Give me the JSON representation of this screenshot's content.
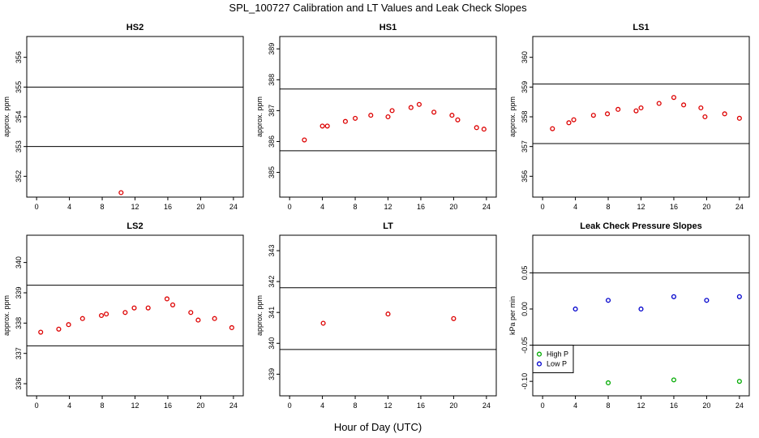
{
  "figure": {
    "title": "SPL_100727  Calibration and LT Values and Leak Check Slopes",
    "xlabel": "Hour of Day (UTC)"
  },
  "colors": {
    "calibration_points": "#dd0000",
    "high_p": "#00aa00",
    "low_p": "#0000cc",
    "axes": "#000000"
  },
  "chart_data": [
    {
      "type": "scatter",
      "title": "HS2",
      "ylabel": "approx. ppm",
      "xlim": [
        -1.2,
        25.2
      ],
      "ylim": [
        351.3,
        356.7
      ],
      "xticks": [
        0,
        4,
        8,
        12,
        16,
        20,
        24
      ],
      "yticks": [
        352,
        353,
        354,
        355,
        356
      ],
      "hlines": [
        353,
        355
      ],
      "grid": false,
      "series": [
        {
          "color": "#dd0000",
          "points": [
            [
              10.3,
              351.45
            ]
          ]
        }
      ]
    },
    {
      "type": "scatter",
      "title": "HS1",
      "ylabel": "approx. ppm",
      "xlim": [
        -1.2,
        25.2
      ],
      "ylim": [
        384.2,
        389.4
      ],
      "xticks": [
        0,
        4,
        8,
        12,
        16,
        20,
        24
      ],
      "yticks": [
        385,
        386,
        387,
        388,
        389
      ],
      "hlines": [
        385.7,
        387.7
      ],
      "grid": false,
      "series": [
        {
          "color": "#dd0000",
          "points": [
            [
              1.8,
              386.05
            ],
            [
              4.0,
              386.5
            ],
            [
              4.6,
              386.5
            ],
            [
              6.8,
              386.65
            ],
            [
              8.0,
              386.75
            ],
            [
              9.9,
              386.85
            ],
            [
              12.0,
              386.8
            ],
            [
              12.5,
              387.0
            ],
            [
              14.8,
              387.1
            ],
            [
              15.8,
              387.2
            ],
            [
              17.6,
              386.95
            ],
            [
              19.8,
              386.85
            ],
            [
              20.5,
              386.7
            ],
            [
              22.8,
              386.45
            ],
            [
              23.7,
              386.4
            ]
          ]
        }
      ]
    },
    {
      "type": "scatter",
      "title": "LS1",
      "ylabel": "approx. ppm",
      "xlim": [
        -1.2,
        25.2
      ],
      "ylim": [
        355.3,
        360.7
      ],
      "xticks": [
        0,
        4,
        8,
        12,
        16,
        20,
        24
      ],
      "yticks": [
        356,
        357,
        358,
        359,
        360
      ],
      "hlines": [
        357.1,
        359.1
      ],
      "grid": false,
      "series": [
        {
          "color": "#dd0000",
          "points": [
            [
              1.2,
              357.6
            ],
            [
              3.2,
              357.8
            ],
            [
              3.8,
              357.9
            ],
            [
              6.2,
              358.05
            ],
            [
              7.9,
              358.1
            ],
            [
              9.2,
              358.25
            ],
            [
              11.4,
              358.2
            ],
            [
              12.0,
              358.3
            ],
            [
              14.2,
              358.45
            ],
            [
              16.0,
              358.65
            ],
            [
              17.2,
              358.4
            ],
            [
              19.3,
              358.3
            ],
            [
              19.8,
              358.0
            ],
            [
              22.2,
              358.1
            ],
            [
              24.0,
              357.95
            ]
          ]
        }
      ]
    },
    {
      "type": "scatter",
      "title": "LS2",
      "ylabel": "approx. ppm",
      "xlim": [
        -1.2,
        25.2
      ],
      "ylim": [
        335.6,
        340.9
      ],
      "xticks": [
        0,
        4,
        8,
        12,
        16,
        20,
        24
      ],
      "yticks": [
        336,
        337,
        338,
        339,
        340
      ],
      "hlines": [
        337.25,
        339.25
      ],
      "grid": false,
      "series": [
        {
          "color": "#dd0000",
          "points": [
            [
              0.5,
              337.7
            ],
            [
              2.7,
              337.8
            ],
            [
              3.9,
              337.95
            ],
            [
              5.6,
              338.15
            ],
            [
              7.9,
              338.25
            ],
            [
              8.5,
              338.3
            ],
            [
              10.8,
              338.35
            ],
            [
              11.9,
              338.5
            ],
            [
              13.6,
              338.5
            ],
            [
              15.9,
              338.8
            ],
            [
              16.6,
              338.6
            ],
            [
              18.8,
              338.35
            ],
            [
              19.7,
              338.1
            ],
            [
              21.7,
              338.15
            ],
            [
              23.8,
              337.85
            ]
          ]
        }
      ]
    },
    {
      "type": "scatter",
      "title": "LT",
      "ylabel": "approx. ppm",
      "xlim": [
        -1.2,
        25.2
      ],
      "ylim": [
        338.3,
        343.5
      ],
      "xticks": [
        0,
        4,
        8,
        12,
        16,
        20,
        24
      ],
      "yticks": [
        339,
        340,
        341,
        342,
        343
      ],
      "hlines": [
        339.8,
        341.8
      ],
      "grid": false,
      "series": [
        {
          "color": "#dd0000",
          "points": [
            [
              4.1,
              340.65
            ],
            [
              12.0,
              340.95
            ],
            [
              20.0,
              340.8
            ]
          ]
        }
      ]
    },
    {
      "type": "scatter",
      "title": "Leak Check Pressure Slopes",
      "ylabel": "kPa per min",
      "xlim": [
        -1.2,
        25.2
      ],
      "ylim": [
        -0.12,
        0.102
      ],
      "xticks": [
        0,
        4,
        8,
        12,
        16,
        20,
        24
      ],
      "yticks": [
        -0.1,
        -0.05,
        0.0,
        0.05
      ],
      "ytick_labels": [
        "-0.10",
        "-0.05",
        "0.00",
        "0.05"
      ],
      "hlines": [
        -0.05,
        0.05
      ],
      "grid": false,
      "legend": {
        "placement": "lower-left",
        "entries": [
          "High P",
          "Low P"
        ]
      },
      "series": [
        {
          "name": "High P",
          "color": "#00aa00",
          "points": [
            [
              8.0,
              -0.102
            ],
            [
              16.0,
              -0.098
            ],
            [
              24.0,
              -0.1
            ]
          ]
        },
        {
          "name": "Low P",
          "color": "#0000cc",
          "points": [
            [
              4.0,
              0.0
            ],
            [
              8.0,
              0.012
            ],
            [
              12.0,
              0.0
            ],
            [
              16.0,
              0.017
            ],
            [
              20.0,
              0.012
            ],
            [
              24.0,
              0.017
            ]
          ]
        }
      ]
    }
  ]
}
